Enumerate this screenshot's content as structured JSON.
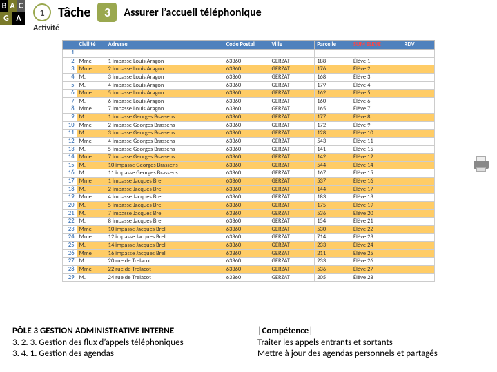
{
  "logo": {
    "r1c1": "B",
    "r1c2": "A",
    "r1c3": "C",
    "r2c1": "G",
    "r2c2": "A"
  },
  "header": {
    "badge1": "1",
    "tache": "Tâche",
    "badge3": "3",
    "title": "Assurer l’accueil téléphonique",
    "activite": "Activité"
  },
  "table": {
    "headers": [
      "Civilité",
      "Adresse",
      "Code Postal",
      "Ville",
      "Parcelle",
      "SUM ELEVE",
      "RDV"
    ],
    "rows": [
      {
        "n": 1,
        "civ": "",
        "adr": "",
        "cp": "",
        "ville": "",
        "par": "",
        "el": "",
        "rdv": "",
        "hl": false
      },
      {
        "n": 2,
        "civ": "Mme",
        "adr": "1 impasse Louis Aragon",
        "cp": "63360",
        "ville": "GERZAT",
        "par": "188",
        "el": "Élève 1",
        "rdv": "",
        "hl": false
      },
      {
        "n": 3,
        "civ": "Mme",
        "adr": "2 impasse Louis Aragon",
        "cp": "63360",
        "ville": "GERZAT",
        "par": "176",
        "el": "Élève 2",
        "rdv": "",
        "hl": true
      },
      {
        "n": 4,
        "civ": "M.",
        "adr": "3 impasse Louis Aragon",
        "cp": "63360",
        "ville": "GERZAT",
        "par": "168",
        "el": "Élève 3",
        "rdv": "",
        "hl": false
      },
      {
        "n": 5,
        "civ": "M.",
        "adr": "4 impasse Louis Aragon",
        "cp": "63360",
        "ville": "GERZAT",
        "par": "179",
        "el": "Élève 4",
        "rdv": "",
        "hl": false
      },
      {
        "n": 6,
        "civ": "Mme",
        "adr": "5 impasse Louis Aragon",
        "cp": "63360",
        "ville": "GERZAT",
        "par": "162",
        "el": "Élève 5",
        "rdv": "",
        "hl": true
      },
      {
        "n": 7,
        "civ": "M.",
        "adr": "6 impasse Louis Aragon",
        "cp": "63360",
        "ville": "GERZAT",
        "par": "160",
        "el": "Élève 6",
        "rdv": "",
        "hl": false
      },
      {
        "n": 8,
        "civ": "Mme",
        "adr": "7 impasse Louis Aragon",
        "cp": "63360",
        "ville": "GERZAT",
        "par": "165",
        "el": "Élève 7",
        "rdv": "",
        "hl": false
      },
      {
        "n": 9,
        "civ": "M.",
        "adr": "1 impasse Georges Brassens",
        "cp": "63360",
        "ville": "GERZAT",
        "par": "177",
        "el": "Élève 8",
        "rdv": "",
        "hl": true
      },
      {
        "n": 10,
        "civ": "Mme",
        "adr": "2 impasse Georges Brassens",
        "cp": "63360",
        "ville": "GERZAT",
        "par": "172",
        "el": "Élève 9",
        "rdv": "",
        "hl": false
      },
      {
        "n": 11,
        "civ": "M.",
        "adr": "3 impasse Georges Brassens",
        "cp": "63360",
        "ville": "GERZAT",
        "par": "128",
        "el": "Élève 10",
        "rdv": "",
        "hl": true
      },
      {
        "n": 12,
        "civ": "Mme",
        "adr": "4 impasse Georges Brassens",
        "cp": "63360",
        "ville": "GERZAT",
        "par": "543",
        "el": "Élève 11",
        "rdv": "",
        "hl": false
      },
      {
        "n": 13,
        "civ": "M.",
        "adr": "5 impasse Georges Brassens",
        "cp": "63360",
        "ville": "GERZAT",
        "par": "141",
        "el": "Élève 15",
        "rdv": "",
        "hl": false
      },
      {
        "n": 14,
        "civ": "Mme",
        "adr": "7 impasse Georges Brassens",
        "cp": "63360",
        "ville": "GERZAT",
        "par": "142",
        "el": "Élève 12",
        "rdv": "",
        "hl": true
      },
      {
        "n": 15,
        "civ": "M.",
        "adr": "10 impasse Georges Brassens",
        "cp": "63360",
        "ville": "GERZAT",
        "par": "544",
        "el": "Élève 14",
        "rdv": "",
        "hl": true
      },
      {
        "n": 16,
        "civ": "M.",
        "adr": "11 impasse Georges Brassens",
        "cp": "63360",
        "ville": "GERZAT",
        "par": "167",
        "el": "Élève 15",
        "rdv": "",
        "hl": false
      },
      {
        "n": 17,
        "civ": "Mme",
        "adr": "1 impasse Jacques Brel",
        "cp": "63360",
        "ville": "GERZAT",
        "par": "537",
        "el": "Élève 16",
        "rdv": "",
        "hl": true
      },
      {
        "n": 18,
        "civ": "M.",
        "adr": "2 impasse Jacques Brel",
        "cp": "63360",
        "ville": "GERZAT",
        "par": "144",
        "el": "Élève 17",
        "rdv": "",
        "hl": true
      },
      {
        "n": 19,
        "civ": "Mme",
        "adr": "4 impasse Jacques Brel",
        "cp": "63360",
        "ville": "GERZAT",
        "par": "183",
        "el": "Élève 13",
        "rdv": "",
        "hl": false
      },
      {
        "n": 20,
        "civ": "M.",
        "adr": "5 impasse Jacques Brel",
        "cp": "63360",
        "ville": "GERZAT",
        "par": "175",
        "el": "Élève 19",
        "rdv": "",
        "hl": true
      },
      {
        "n": 21,
        "civ": "M.",
        "adr": "7 impasse Jacques Brel",
        "cp": "63360",
        "ville": "GERZAT",
        "par": "536",
        "el": "Élève 20",
        "rdv": "",
        "hl": true
      },
      {
        "n": 22,
        "civ": "M.",
        "adr": "8 impasse Jacques Brel",
        "cp": "63360",
        "ville": "GERZAT",
        "par": "154",
        "el": "Élève 21",
        "rdv": "",
        "hl": false
      },
      {
        "n": 23,
        "civ": "Mme",
        "adr": "10 impasse Jacques Brel",
        "cp": "63360",
        "ville": "GERZAT",
        "par": "530",
        "el": "Élève 22",
        "rdv": "",
        "hl": true
      },
      {
        "n": 24,
        "civ": "Mme",
        "adr": "12 impasse Jacques Brel",
        "cp": "63360",
        "ville": "GERZAT",
        "par": "714",
        "el": "Élève 23",
        "rdv": "",
        "hl": false
      },
      {
        "n": 25,
        "civ": "M.",
        "adr": "14 impasse Jacques Brel",
        "cp": "63360",
        "ville": "GERZAT",
        "par": "233",
        "el": "Élève 24",
        "rdv": "",
        "hl": true
      },
      {
        "n": 26,
        "civ": "Mme",
        "adr": "16 impasse Jacques Brel",
        "cp": "63360",
        "ville": "GERZAT",
        "par": "211",
        "el": "Élève 25",
        "rdv": "",
        "hl": true
      },
      {
        "n": 27,
        "civ": "M.",
        "adr": "20 rue de Trelacot",
        "cp": "63360",
        "ville": "GERZAT",
        "par": "233",
        "el": "Élève 26",
        "rdv": "",
        "hl": false
      },
      {
        "n": 28,
        "civ": "Mme",
        "adr": "22 rue de Trelacot",
        "cp": "63360",
        "ville": "GERZAT",
        "par": "536",
        "el": "Élève 27",
        "rdv": "",
        "hl": true
      },
      {
        "n": 29,
        "civ": "M.",
        "adr": "24 rue de Trelacot",
        "cp": "63360",
        "ville": "GERZAT",
        "par": "205",
        "el": "Élève 28",
        "rdv": "",
        "hl": false
      }
    ]
  },
  "footer": {
    "left_title": "PÔLE 3 GESTION ADMINISTRATIVE INTERNE",
    "left_l1": "3. 2. 3. Gestion des flux d’appels téléphoniques",
    "left_l2": "3. 4. 1. Gestion des agendas",
    "right_title": "│Compétence│",
    "right_l1": "Traiter les appels entrants et sortants",
    "right_l2": "Mettre à jour des agendas personnels et partagés"
  }
}
